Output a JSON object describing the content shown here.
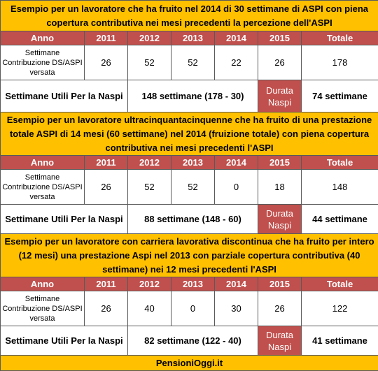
{
  "headers": [
    "Anno",
    "2011",
    "2012",
    "2013",
    "2014",
    "2015",
    "Totale"
  ],
  "examples": [
    {
      "title": "Esempio per un lavoratore che ha fruito nel 2014 di 30 settimane di ASPI con piena copertura contributiva nei mesi precedenti la percezione dell'ASPI",
      "row_label": "Settimane Contribuzione DS/ASPI versata",
      "values": [
        "26",
        "52",
        "52",
        "22",
        "26",
        "178"
      ],
      "utili_label": "Settimane Utili Per la Naspi",
      "utili_value": "148 settimane (178 - 30)",
      "durata_label": "Durata Naspi",
      "durata_value": "74 settimane"
    },
    {
      "title": "Esempio per un lavoratore ultracinquantacinquenne che ha fruito di una prestazione totale ASPI di 14 mesi (60 settimane) nel 2014 (fruizione totale) con piena copertura contributiva nei mesi precedenti l'ASPI",
      "row_label": "Settimane Contribuzione DS/ASPI versata",
      "values": [
        "26",
        "52",
        "52",
        "0",
        "18",
        "148"
      ],
      "utili_label": "Settimane Utili Per la Naspi",
      "utili_value": "88 settimane (148 - 60)",
      "durata_label": "Durata Naspi",
      "durata_value": "44 settimane"
    },
    {
      "title": "Esempio per un lavoratore con carriera lavorativa discontinua che ha fruito per intero (12 mesi) una prestazione Aspi nel 2013 con parziale copertura contributiva (40 settimane) nei 12 mesi precedenti l'ASPI",
      "row_label": "Settimane Contribuzione DS/ASPI versata",
      "values": [
        "26",
        "40",
        "0",
        "30",
        "26",
        "122"
      ],
      "utili_label": "Settimane Utili Per la Naspi",
      "utili_value": "82 settimane (122 - 40)",
      "durata_label": "Durata Naspi",
      "durata_value": "41 settimane"
    }
  ],
  "footer": "PensioniOggi.it",
  "colors": {
    "title_bg": "#ffc000",
    "header_bg": "#c0504d",
    "header_text": "#ffffff",
    "border": "#5a5a5a"
  }
}
